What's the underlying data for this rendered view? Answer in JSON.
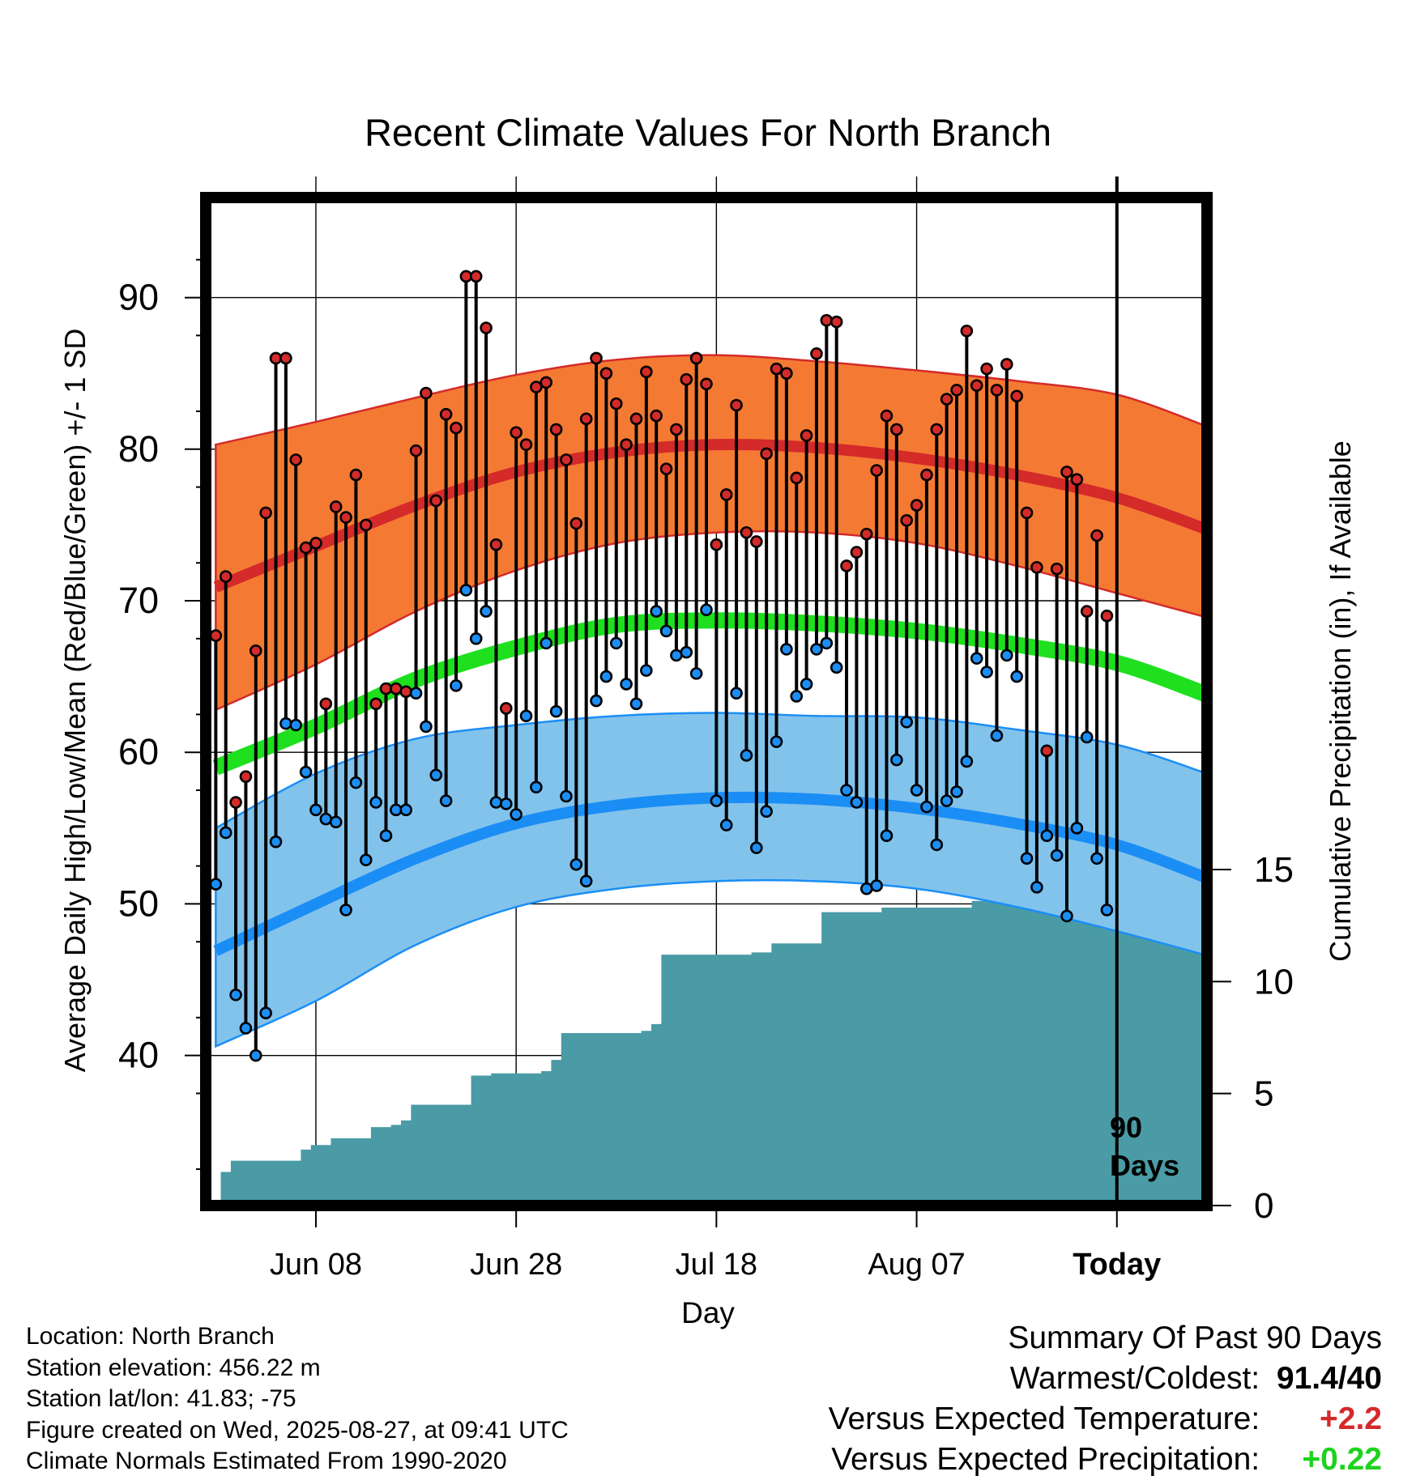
{
  "title": "Recent Climate Values For North Branch",
  "ylabel_left": "Average Daily High/Low/Mean (Red/Blue/Green) +/- 1 SD",
  "ylabel_right": "Cumulative Precipitation (in), If Available",
  "xlabel": "Day",
  "marker_label": [
    "90",
    "Days"
  ],
  "colors": {
    "high_band": "#f47a33",
    "high_normal": "#d42a2a",
    "low_band": "#82c3ec",
    "low_normal": "#1b8ef5",
    "mean_normal": "#1ee01e",
    "precip_fill": "#4a9ba5",
    "high_point": "#d42a2a",
    "low_point": "#1b8ef5",
    "temp_anomaly": "#d42a2a",
    "precip_anomaly": "#1ed21e"
  },
  "location_info": [
    "Location: North Branch",
    "Station elevation: 456.22 m",
    "Station lat/lon: 41.83; -75",
    "Figure created on Wed, 2025-08-27, at 09:41 UTC",
    "Climate Normals Estimated From 1990-2020"
  ],
  "summary": {
    "title": "Summary Of Past 90 Days",
    "rows": [
      {
        "label": "Warmest/Coldest:",
        "value": "91.4/40"
      },
      {
        "label": "Versus Expected Temperature:",
        "value": "+2.2"
      },
      {
        "label": "Versus Expected Precipitation:",
        "value": "+0.22"
      }
    ]
  },
  "chart_data": {
    "type": "line",
    "x_axis": {
      "tick_labels": [
        "Jun 08",
        "Jun 28",
        "Jul 18",
        "Aug 07",
        "Today"
      ],
      "tick_days": [
        -80,
        -60,
        -40,
        -20,
        0
      ],
      "range_days": [
        -91,
        9
      ]
    },
    "y_axis_left": {
      "ticks": [
        40,
        50,
        60,
        70,
        80,
        90
      ],
      "range": [
        30.1,
        96.6
      ]
    },
    "y_axis_right": {
      "ticks": [
        0,
        5,
        10,
        15
      ],
      "range": [
        0,
        45
      ]
    },
    "grid": true,
    "normals": {
      "days": [
        -90,
        -80,
        -70,
        -60,
        -50,
        -40,
        -30,
        -20,
        -10,
        0,
        9
      ],
      "high_mean": [
        70.9,
        73.6,
        76.3,
        78.5,
        79.8,
        80.3,
        80.1,
        79.4,
        78.3,
        76.8,
        74.7
      ],
      "high_upper": [
        80.3,
        81.8,
        83.4,
        84.9,
        85.9,
        86.2,
        85.8,
        85.2,
        84.5,
        83.6,
        81.5
      ],
      "high_lower": [
        62.8,
        65.8,
        69.3,
        72.0,
        73.8,
        74.5,
        74.5,
        73.8,
        72.3,
        70.5,
        68.9
      ],
      "mean": [
        59.0,
        61.7,
        64.8,
        66.9,
        68.4,
        68.7,
        68.5,
        68.0,
        67.1,
        65.9,
        63.8
      ],
      "low_mean": [
        46.9,
        50.0,
        53.0,
        55.3,
        56.5,
        57.0,
        56.9,
        56.3,
        55.3,
        53.9,
        51.7
      ],
      "low_upper": [
        55.0,
        58.6,
        60.9,
        61.8,
        62.4,
        62.6,
        62.4,
        62.3,
        61.5,
        60.5,
        58.6
      ],
      "low_lower": [
        40.6,
        43.6,
        47.3,
        49.8,
        51.0,
        51.5,
        51.5,
        51.0,
        49.8,
        48.2,
        46.6
      ]
    },
    "series": [
      {
        "name": "High",
        "x": [
          -90,
          -89,
          -88,
          -87,
          -86,
          -85,
          -84,
          -83,
          -82,
          -81,
          -80,
          -79,
          -78,
          -77,
          -76,
          -75,
          -74,
          -73,
          -72,
          -71,
          -70,
          -69,
          -68,
          -67,
          -66,
          -65,
          -64,
          -63,
          -62,
          -61,
          -60,
          -59,
          -58,
          -57,
          -56,
          -55,
          -54,
          -53,
          -52,
          -51,
          -50,
          -49,
          -48,
          -47,
          -46,
          -45,
          -44,
          -43,
          -42,
          -41,
          -40,
          -39,
          -38,
          -37,
          -36,
          -35,
          -34,
          -33,
          -32,
          -31,
          -30,
          -29,
          -28,
          -27,
          -26,
          -25,
          -24,
          -23,
          -22,
          -21,
          -20,
          -19,
          -18,
          -17,
          -16,
          -15,
          -14,
          -13,
          -12,
          -11,
          -10,
          -9,
          -8,
          -7,
          -6,
          -5,
          -4,
          -3,
          -2,
          -1
        ],
        "y": [
          67.7,
          71.6,
          56.7,
          58.4,
          66.7,
          75.8,
          86.0,
          86.0,
          79.3,
          73.5,
          73.8,
          63.2,
          76.2,
          75.5,
          78.3,
          75.0,
          63.2,
          64.2,
          64.2,
          64.0,
          79.9,
          83.7,
          76.6,
          82.3,
          81.4,
          91.4,
          91.4,
          88.0,
          73.7,
          62.9,
          81.1,
          80.3,
          84.1,
          84.4,
          81.3,
          79.3,
          75.1,
          82.0,
          86.0,
          85.0,
          83.0,
          80.3,
          82.0,
          85.1,
          82.2,
          78.7,
          81.3,
          84.6,
          86.0,
          84.3,
          73.7,
          77.0,
          82.9,
          74.5,
          73.9,
          79.7,
          85.3,
          85.0,
          78.1,
          80.9,
          86.3,
          88.5,
          88.4,
          72.3,
          73.2,
          74.4,
          78.6,
          82.2,
          81.3,
          75.3,
          76.3,
          78.3,
          81.3,
          83.3,
          83.9,
          87.8,
          84.2,
          85.3,
          83.9,
          85.6,
          83.5,
          75.8,
          72.2,
          60.1,
          72.1,
          78.5,
          78.0,
          69.3,
          74.3,
          69.0
        ]
      },
      {
        "name": "Low",
        "x": [
          -90,
          -89,
          -88,
          -87,
          -86,
          -85,
          -84,
          -83,
          -82,
          -81,
          -80,
          -79,
          -78,
          -77,
          -76,
          -75,
          -74,
          -73,
          -72,
          -71,
          -70,
          -69,
          -68,
          -67,
          -66,
          -65,
          -64,
          -63,
          -62,
          -61,
          -60,
          -59,
          -58,
          -57,
          -56,
          -55,
          -54,
          -53,
          -52,
          -51,
          -50,
          -49,
          -48,
          -47,
          -46,
          -45,
          -44,
          -43,
          -42,
          -41,
          -40,
          -39,
          -38,
          -37,
          -36,
          -35,
          -34,
          -33,
          -32,
          -31,
          -30,
          -29,
          -28,
          -27,
          -26,
          -25,
          -24,
          -23,
          -22,
          -21,
          -20,
          -19,
          -18,
          -17,
          -16,
          -15,
          -14,
          -13,
          -12,
          -11,
          -10,
          -9,
          -8,
          -7,
          -6,
          -5,
          -4,
          -3,
          -2,
          -1
        ],
        "y": [
          51.3,
          54.7,
          44.0,
          41.8,
          40.0,
          42.8,
          54.1,
          61.9,
          61.8,
          58.7,
          56.2,
          55.6,
          55.4,
          49.6,
          58.0,
          52.9,
          56.7,
          54.5,
          56.2,
          56.2,
          63.9,
          61.7,
          58.5,
          56.8,
          64.4,
          70.7,
          67.5,
          69.3,
          56.7,
          56.6,
          55.9,
          62.4,
          57.7,
          67.2,
          62.7,
          57.1,
          52.6,
          51.5,
          63.4,
          65.0,
          67.2,
          64.5,
          63.2,
          65.4,
          69.3,
          68.0,
          66.4,
          66.6,
          65.2,
          69.4,
          56.8,
          55.2,
          63.9,
          59.8,
          53.7,
          56.1,
          60.7,
          66.8,
          63.7,
          64.5,
          66.8,
          67.2,
          65.6,
          57.5,
          56.7,
          51.0,
          51.2,
          54.5,
          59.5,
          62.0,
          57.5,
          56.4,
          53.9,
          56.8,
          57.4,
          59.4,
          66.2,
          65.3,
          61.1,
          66.4,
          65.0,
          53.0,
          51.1,
          54.5,
          53.2,
          49.2,
          55.0,
          61.0,
          53.0,
          49.6
        ]
      }
    ],
    "precipitation": {
      "days": [
        -92,
        -89.5,
        -89.5,
        -88.5,
        -88.5,
        -83.5,
        -83.5,
        -81.5,
        -81.5,
        -80.5,
        -80.5,
        -78.5,
        -78.5,
        -75.5,
        -75.5,
        -74.5,
        -74.5,
        -72.5,
        -72.5,
        -71.5,
        -71.5,
        -70.5,
        -70.5,
        -67.5,
        -67.5,
        -64.5,
        -64.5,
        -62.5,
        -62.5,
        -58.5,
        -58.5,
        -57.5,
        -57.5,
        -56.5,
        -56.5,
        -55.5,
        -55.5,
        -52.5,
        -52.5,
        -50.5,
        -50.5,
        -47.5,
        -47.5,
        -46.5,
        -46.5,
        -45.5,
        -45.5,
        -44.5,
        -44.5,
        -36.5,
        -36.5,
        -34.5,
        -34.5,
        -32.5,
        -32.5,
        -29.5,
        -29.5,
        -28.5,
        -28.5,
        -27.5,
        -27.5,
        -23.5,
        -23.5,
        -20.5,
        -20.5,
        -14.5,
        -14.5,
        -9.5,
        -9.5,
        -7.5,
        -7.5,
        -4.5,
        -4.5,
        9
      ],
      "cum_in": [
        0,
        0,
        1.5,
        1.5,
        2.0,
        2.0,
        2.0,
        2.0,
        2.5,
        2.5,
        2.7,
        2.7,
        3.0,
        3.0,
        3.0,
        3.0,
        3.5,
        3.5,
        3.6,
        3.6,
        3.8,
        3.8,
        4.5,
        4.5,
        4.5,
        4.5,
        5.8,
        5.8,
        5.9,
        5.9,
        5.9,
        5.9,
        6.0,
        6.0,
        6.5,
        6.5,
        7.7,
        7.7,
        7.7,
        7.7,
        7.7,
        7.7,
        7.8,
        7.8,
        8.1,
        8.1,
        11.2,
        11.2,
        11.2,
        11.2,
        11.3,
        11.3,
        11.7,
        11.7,
        11.7,
        11.7,
        13.1,
        13.1,
        13.1,
        13.1,
        13.1,
        13.1,
        13.3,
        13.3,
        13.3,
        13.3,
        13.6,
        13.6,
        13.6,
        13.6,
        13.9,
        13.9,
        14.0,
        14.0
      ]
    }
  }
}
